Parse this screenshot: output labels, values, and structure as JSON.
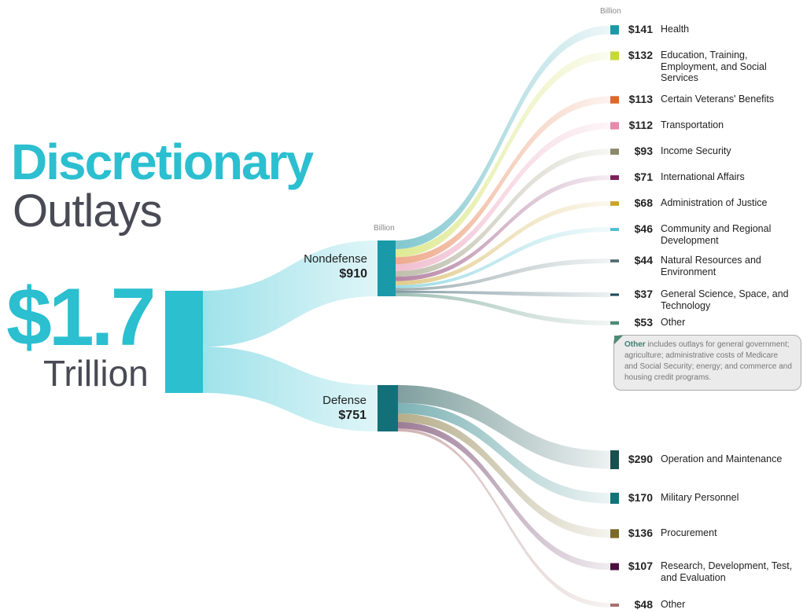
{
  "title": {
    "line1": "Discretionary",
    "line2": "Outlays"
  },
  "total": {
    "value": "$1.7",
    "unit": "Trillion"
  },
  "unit_label": "Billion",
  "note": {
    "bold": "Other",
    "text": " includes outlays for general government; agriculture; administrative costs of Medicare and Social Security; energy; and commerce and housing credit programs."
  },
  "chart_data": {
    "type": "sankey",
    "root": {
      "label": "$1.7 Trillion",
      "value": 1661,
      "color": "#2bbfd0"
    },
    "groups": [
      {
        "name": "Nondefense",
        "value_label": "$910",
        "value": 910,
        "color": "#1a9aa8",
        "children": [
          {
            "name": "Health",
            "value_label": "$141",
            "value": 141,
            "color": "#1a9aa8"
          },
          {
            "name": "Education, Training, Employment, and Social Services",
            "value_label": "$132",
            "value": 132,
            "color": "#c5d93b"
          },
          {
            "name": "Certain Veterans' Benefits",
            "value_label": "$113",
            "value": 113,
            "color": "#e0662e"
          },
          {
            "name": "Transportation",
            "value_label": "$112",
            "value": 112,
            "color": "#e48aaa"
          },
          {
            "name": "Income Security",
            "value_label": "$93",
            "value": 93,
            "color": "#8a8a6a"
          },
          {
            "name": "International Affairs",
            "value_label": "$71",
            "value": 71,
            "color": "#7a1f5a"
          },
          {
            "name": "Administration of Justice",
            "value_label": "$68",
            "value": 68,
            "color": "#c9a22a"
          },
          {
            "name": "Community and Regional Development",
            "value_label": "$46",
            "value": 46,
            "color": "#4bbfd0"
          },
          {
            "name": "Natural Resources and Environment",
            "value_label": "$44",
            "value": 44,
            "color": "#4f6a70"
          },
          {
            "name": "General Science, Space, and Technology",
            "value_label": "$37",
            "value": 37,
            "color": "#1f4a5a"
          },
          {
            "name": "Other",
            "value_label": "$53",
            "value": 53,
            "color": "#4f8a78"
          }
        ]
      },
      {
        "name": "Defense",
        "value_label": "$751",
        "value": 751,
        "color": "#137078",
        "children": [
          {
            "name": "Operation and Maintenance",
            "value_label": "$290",
            "value": 290,
            "color": "#17514f"
          },
          {
            "name": "Military Personnel",
            "value_label": "$170",
            "value": 170,
            "color": "#137478"
          },
          {
            "name": "Procurement",
            "value_label": "$136",
            "value": 136,
            "color": "#7a6a2a"
          },
          {
            "name": "Research, Development, Test, and Evaluation",
            "value_label": "$107",
            "value": 107,
            "color": "#4a1040"
          },
          {
            "name": "Other",
            "value_label": "$48",
            "value": 48,
            "color": "#a87070"
          }
        ]
      }
    ]
  }
}
